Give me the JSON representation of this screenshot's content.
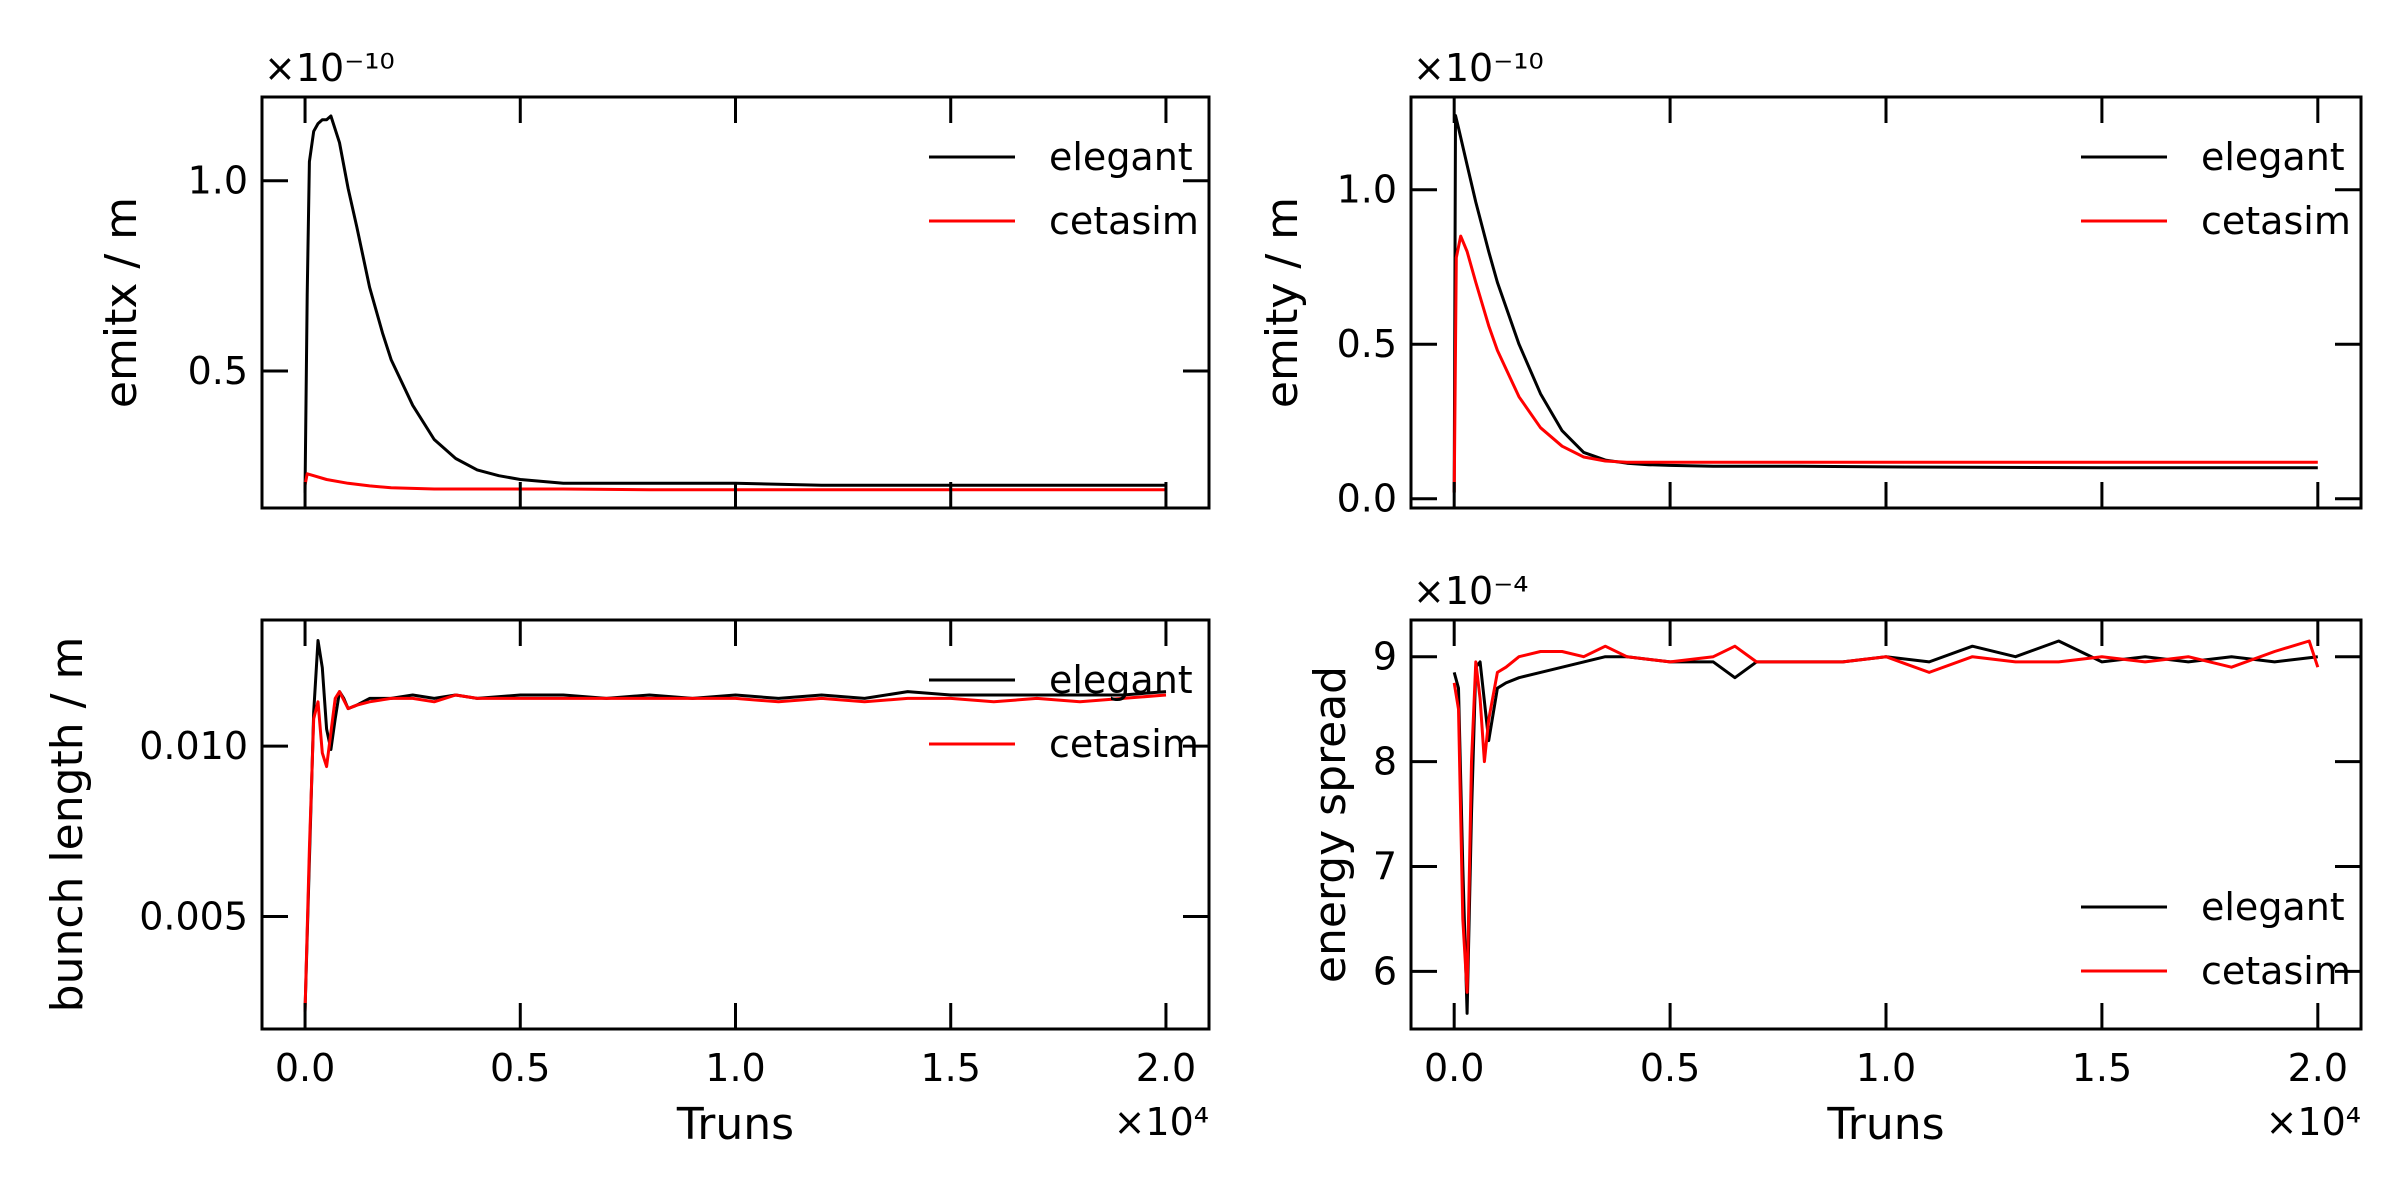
{
  "chart_data": [
    {
      "type": "line",
      "id": "emitx",
      "ylabel": "emitx / m",
      "xlabel": "",
      "y_offset_text": "×10⁻¹⁰",
      "x_offset_text": "",
      "xlim": [
        -0.1,
        2.1
      ],
      "ylim": [
        0.14,
        1.22
      ],
      "xticks": [
        0.0,
        0.5,
        1.0,
        1.5,
        2.0
      ],
      "xtick_labels": [],
      "yticks": [
        0.5,
        1.0
      ],
      "ytick_labels": [
        "0.5",
        "1.0"
      ],
      "legend_position": "top-right",
      "series": [
        {
          "name": "elegant",
          "color": "#000000",
          "x": [
            0.0,
            0.005,
            0.01,
            0.02,
            0.03,
            0.04,
            0.05,
            0.06,
            0.08,
            0.1,
            0.12,
            0.15,
            0.18,
            0.2,
            0.25,
            0.3,
            0.35,
            0.4,
            0.45,
            0.5,
            0.55,
            0.6,
            0.7,
            0.8,
            0.9,
            1.0,
            1.2,
            1.4,
            1.6,
            1.8,
            2.0
          ],
          "y": [
            0.18,
            0.7,
            1.05,
            1.13,
            1.15,
            1.16,
            1.16,
            1.17,
            1.1,
            0.98,
            0.88,
            0.72,
            0.6,
            0.53,
            0.41,
            0.32,
            0.27,
            0.24,
            0.225,
            0.215,
            0.21,
            0.205,
            0.205,
            0.205,
            0.205,
            0.205,
            0.2,
            0.2,
            0.2,
            0.2,
            0.2
          ]
        },
        {
          "name": "cetasim",
          "color": "#ff0000",
          "x": [
            0.0,
            0.005,
            0.02,
            0.05,
            0.1,
            0.15,
            0.2,
            0.3,
            0.4,
            0.5,
            0.6,
            0.8,
            1.0,
            1.2,
            1.4,
            1.6,
            1.8,
            2.0
          ],
          "y": [
            0.2,
            0.23,
            0.225,
            0.215,
            0.205,
            0.198,
            0.193,
            0.19,
            0.19,
            0.19,
            0.19,
            0.188,
            0.188,
            0.188,
            0.188,
            0.188,
            0.188,
            0.188
          ]
        }
      ]
    },
    {
      "type": "line",
      "id": "emity",
      "ylabel": "emity / m",
      "xlabel": "",
      "y_offset_text": "×10⁻¹⁰",
      "x_offset_text": "",
      "xlim": [
        -0.1,
        2.1
      ],
      "ylim": [
        -0.03,
        1.3
      ],
      "xticks": [
        0.0,
        0.5,
        1.0,
        1.5,
        2.0
      ],
      "xtick_labels": [],
      "yticks": [
        0.0,
        0.5,
        1.0
      ],
      "ytick_labels": [
        "0.0",
        "0.5",
        "1.0"
      ],
      "legend_position": "top-right",
      "series": [
        {
          "name": "elegant",
          "color": "#000000",
          "x": [
            0.0,
            0.003,
            0.01,
            0.03,
            0.05,
            0.08,
            0.1,
            0.15,
            0.2,
            0.25,
            0.3,
            0.35,
            0.4,
            0.45,
            0.5,
            0.6,
            0.8,
            1.0,
            1.2,
            1.5,
            2.0
          ],
          "y": [
            0.02,
            1.24,
            1.2,
            1.08,
            0.96,
            0.8,
            0.7,
            0.5,
            0.34,
            0.22,
            0.15,
            0.125,
            0.115,
            0.11,
            0.108,
            0.105,
            0.105,
            0.103,
            0.102,
            0.1,
            0.1
          ]
        },
        {
          "name": "cetasim",
          "color": "#ff0000",
          "x": [
            0.0,
            0.005,
            0.015,
            0.03,
            0.05,
            0.08,
            0.1,
            0.15,
            0.2,
            0.25,
            0.3,
            0.35,
            0.4,
            0.45,
            0.5,
            0.6,
            0.8,
            1.0,
            1.2,
            1.5,
            2.0
          ],
          "y": [
            0.02,
            0.78,
            0.85,
            0.8,
            0.7,
            0.56,
            0.48,
            0.33,
            0.23,
            0.17,
            0.135,
            0.122,
            0.118,
            0.118,
            0.118,
            0.118,
            0.118,
            0.118,
            0.118,
            0.118,
            0.118
          ]
        }
      ]
    },
    {
      "type": "line",
      "id": "bunch-length",
      "ylabel": "bunch length / m",
      "xlabel": "Truns",
      "y_offset_text": "",
      "x_offset_text": "×10⁴",
      "xlim": [
        -0.1,
        2.1
      ],
      "ylim": [
        0.0017,
        0.0137
      ],
      "xticks": [
        0.0,
        0.5,
        1.0,
        1.5,
        2.0
      ],
      "xtick_labels": [
        "0.0",
        "0.5",
        "1.0",
        "1.5",
        "2.0"
      ],
      "yticks": [
        0.005,
        0.01
      ],
      "ytick_labels": [
        "0.005",
        "0.010"
      ],
      "legend_position": "top-right",
      "series": [
        {
          "name": "elegant",
          "color": "#000000",
          "x": [
            0.0,
            0.02,
            0.03,
            0.04,
            0.05,
            0.06,
            0.07,
            0.08,
            0.09,
            0.1,
            0.12,
            0.15,
            0.2,
            0.25,
            0.3,
            0.35,
            0.4,
            0.5,
            0.6,
            0.7,
            0.8,
            0.9,
            1.0,
            1.1,
            1.2,
            1.3,
            1.4,
            1.5,
            1.6,
            1.7,
            1.8,
            1.9,
            2.0
          ],
          "y": [
            0.0022,
            0.011,
            0.0131,
            0.0123,
            0.0105,
            0.0099,
            0.0108,
            0.0116,
            0.0114,
            0.0111,
            0.0112,
            0.0114,
            0.0114,
            0.0115,
            0.0114,
            0.0115,
            0.0114,
            0.0115,
            0.0115,
            0.0114,
            0.0115,
            0.0114,
            0.0115,
            0.0114,
            0.0115,
            0.0114,
            0.0116,
            0.0115,
            0.0115,
            0.0115,
            0.0115,
            0.0115,
            0.0116
          ]
        },
        {
          "name": "cetasim",
          "color": "#ff0000",
          "x": [
            0.0,
            0.01,
            0.02,
            0.03,
            0.04,
            0.05,
            0.06,
            0.07,
            0.08,
            0.1,
            0.12,
            0.15,
            0.2,
            0.25,
            0.3,
            0.35,
            0.4,
            0.5,
            0.6,
            0.7,
            0.8,
            0.9,
            1.0,
            1.1,
            1.2,
            1.3,
            1.4,
            1.5,
            1.6,
            1.7,
            1.8,
            1.9,
            2.0
          ],
          "y": [
            0.0022,
            0.007,
            0.0108,
            0.0113,
            0.0098,
            0.0094,
            0.0104,
            0.0114,
            0.0116,
            0.0111,
            0.0112,
            0.0113,
            0.0114,
            0.0114,
            0.0113,
            0.0115,
            0.0114,
            0.0114,
            0.0114,
            0.0114,
            0.0114,
            0.0114,
            0.0114,
            0.0113,
            0.0114,
            0.0113,
            0.0114,
            0.0114,
            0.0113,
            0.0114,
            0.0113,
            0.0114,
            0.0115
          ]
        }
      ]
    },
    {
      "type": "line",
      "id": "energy-spread",
      "ylabel": "energy spread",
      "xlabel": "Truns",
      "y_offset_text": "×10⁻⁴",
      "x_offset_text": "×10⁴",
      "xlim": [
        -0.1,
        2.1
      ],
      "ylim": [
        5.45,
        9.35
      ],
      "xticks": [
        0.0,
        0.5,
        1.0,
        1.5,
        2.0
      ],
      "xtick_labels": [
        "0.0",
        "0.5",
        "1.0",
        "1.5",
        "2.0"
      ],
      "yticks": [
        6,
        7,
        8,
        9
      ],
      "ytick_labels": [
        "6",
        "7",
        "8",
        "9"
      ],
      "legend_position": "bottom-right",
      "series": [
        {
          "name": "elegant",
          "color": "#000000",
          "x": [
            0.0,
            0.01,
            0.02,
            0.03,
            0.04,
            0.05,
            0.06,
            0.08,
            0.1,
            0.12,
            0.15,
            0.2,
            0.25,
            0.3,
            0.35,
            0.4,
            0.5,
            0.6,
            0.65,
            0.7,
            0.8,
            0.9,
            1.0,
            1.1,
            1.2,
            1.3,
            1.4,
            1.5,
            1.6,
            1.7,
            1.8,
            1.9,
            2.0
          ],
          "y": [
            8.85,
            8.7,
            7.0,
            5.6,
            7.5,
            8.9,
            8.95,
            8.2,
            8.7,
            8.75,
            8.8,
            8.85,
            8.9,
            8.95,
            9.0,
            9.0,
            8.95,
            8.95,
            8.8,
            8.95,
            8.95,
            8.95,
            9.0,
            8.95,
            9.1,
            9.0,
            9.15,
            8.95,
            9.0,
            8.95,
            9.0,
            8.95,
            9.0
          ]
        },
        {
          "name": "cetasim",
          "color": "#ff0000",
          "x": [
            0.0,
            0.01,
            0.02,
            0.03,
            0.04,
            0.05,
            0.06,
            0.07,
            0.08,
            0.1,
            0.12,
            0.15,
            0.2,
            0.25,
            0.3,
            0.35,
            0.4,
            0.5,
            0.6,
            0.65,
            0.7,
            0.8,
            0.9,
            1.0,
            1.1,
            1.2,
            1.3,
            1.4,
            1.5,
            1.6,
            1.7,
            1.8,
            1.9,
            1.98,
            2.0
          ],
          "y": [
            8.75,
            8.5,
            6.5,
            5.8,
            8.0,
            8.95,
            8.6,
            8.0,
            8.4,
            8.85,
            8.9,
            9.0,
            9.05,
            9.05,
            9.0,
            9.1,
            9.0,
            8.95,
            9.0,
            9.1,
            8.95,
            8.95,
            8.95,
            9.0,
            8.85,
            9.0,
            8.95,
            8.95,
            9.0,
            8.95,
            9.0,
            8.9,
            9.05,
            9.15,
            8.9
          ]
        }
      ]
    }
  ]
}
